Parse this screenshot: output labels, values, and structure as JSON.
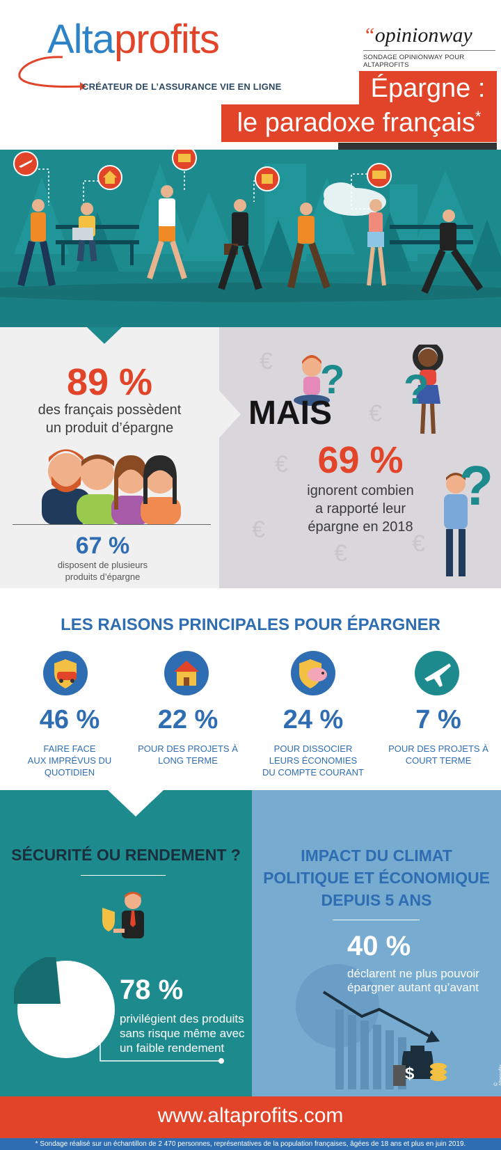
{
  "header": {
    "logo_part1": "Alta",
    "logo_part2": "profits",
    "tagline": "CRÉATEUR DE L’ASSURANCE VIE EN LIGNE",
    "opinionway_quote": "“",
    "opinionway_logo": "opinionway",
    "opinionway_sub": "SONDAGE OPINIONWAY POUR ALTAPROFITS",
    "title_line1": "Épargne :",
    "title_line2": "le paradoxe français",
    "title_star": "*"
  },
  "stats": {
    "pct_89": "89 %",
    "text_89_l1": "des français possèdent",
    "text_89_l2": "un produit d’épargne",
    "pct_67": "67 %",
    "text_67_l1": "disposent de plusieurs",
    "text_67_l2": "produits d’épargne",
    "mais": "MAIS",
    "pct_69": "69 %",
    "text_69_l1": "ignorent combien",
    "text_69_l2": "a rapporté leur",
    "text_69_l3": "épargne en 2018",
    "euro": "€"
  },
  "reasons": {
    "title": "LES RAISONS PRINCIPALES POUR ÉPARGNER",
    "items": [
      {
        "pct": "46 %",
        "l1": "FAIRE FACE",
        "l2": "AUX IMPRÉVUS DU",
        "l3": "QUOTIDIEN",
        "icon": "car-shield-icon"
      },
      {
        "pct": "22 %",
        "l1": "POUR DES PROJETS À",
        "l2": "LONG TERME",
        "l3": "",
        "icon": "house-icon"
      },
      {
        "pct": "24 %",
        "l1": "POUR DISSOCIER",
        "l2": "LEURS ÉCONOMIES",
        "l3": "DU COMPTE COURANT",
        "icon": "piggy-shield-icon"
      },
      {
        "pct": "7 %",
        "l1": "POUR DES PROJETS À",
        "l2": "COURT TERME",
        "l3": "",
        "icon": "airplane-icon"
      }
    ]
  },
  "security": {
    "title": "SÉCURITÉ OU RENDEMENT ?",
    "pct": "78 %",
    "l1": "privilégient des produits",
    "l2": "sans risque même avec",
    "l3": "un faible rendement"
  },
  "climate": {
    "title_l1": "IMPACT DU CLIMAT",
    "title_l2": "POLITIQUE ET ÉCONOMIQUE",
    "title_l3": "DEPUIS 5 ANS",
    "pct": "40 %",
    "l1": "déclarent ne plus pouvoir",
    "l2": "épargner autant qu’avant",
    "bag_symbol": "$",
    "copyright": "© Altaprofits, juin 2019"
  },
  "footer": {
    "url": "www.altaprofits.com",
    "footnote": "* Sondage réalisé sur un échantillon de 2 470 personnes, représentatives de la population françaises, âgées de 18 ans et plus en juin 2019."
  },
  "colors": {
    "red": "#e2442a",
    "blue": "#2f6db2",
    "teal": "#1d8a8e",
    "light_blue": "#77abd0"
  }
}
